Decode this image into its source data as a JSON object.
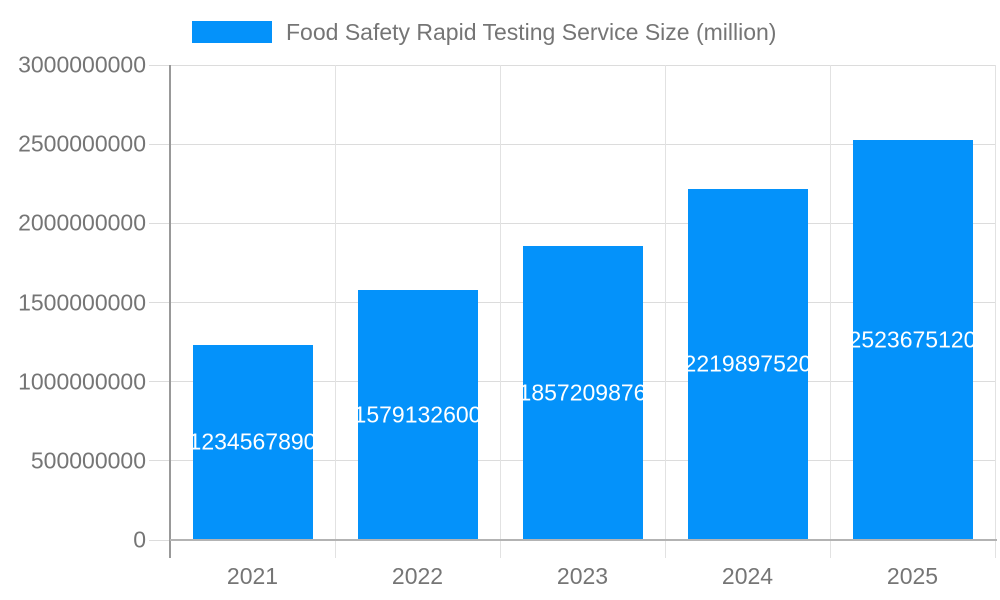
{
  "legend": {
    "label": "Food Safety Rapid Testing Service Size (million)"
  },
  "chart_data": {
    "type": "bar",
    "title": "Food Safety Rapid Testing Service Size (million)",
    "categories": [
      "2021",
      "2022",
      "2023",
      "2024",
      "2025"
    ],
    "values": [
      1234567890,
      1579132600,
      1857209876,
      2219897520,
      2523675120
    ],
    "value_labels": [
      "1234567890",
      "1579132600",
      "1857209876",
      "2219897520",
      "2523675120"
    ],
    "xlabel": "",
    "ylabel": "",
    "ylim": [
      0,
      3000000000
    ],
    "yticks": [
      0,
      500000000,
      1000000000,
      1500000000,
      2000000000,
      2500000000,
      3000000000
    ],
    "ytick_labels": [
      "0",
      "500000000",
      "1000000000",
      "1500000000",
      "2000000000",
      "2500000000",
      "3000000000"
    ],
    "grid": true,
    "legend_position": "top",
    "bar_color": "#0492fa",
    "value_label_color": "#ffffff"
  },
  "colors": {
    "bar": "#0492fa",
    "axis_text": "#757575",
    "gridline": "#dcdcdc",
    "axis_line": "#999999",
    "baseline": "#b3b3b3",
    "background": "#ffffff"
  }
}
